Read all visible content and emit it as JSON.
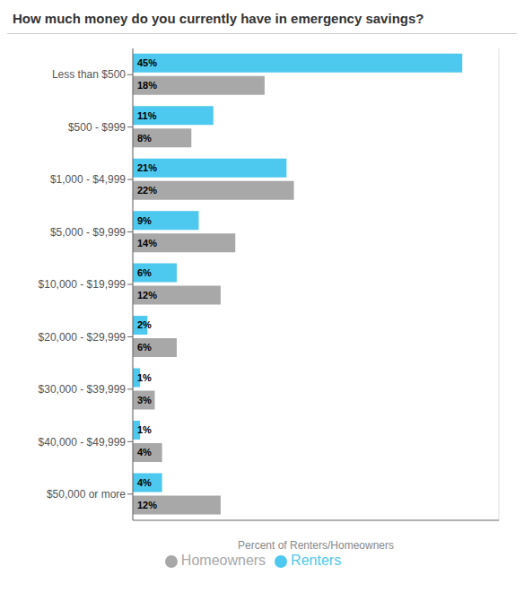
{
  "chart_data": {
    "type": "bar",
    "orientation": "horizontal",
    "title": "How much money do you currently have in emergency savings?",
    "x_label": "Percent of Renters/Homeowners",
    "categories": [
      "Less than $500",
      "$500 - $999",
      "$1,000 - $4,999",
      "$5,000 - $9,999",
      "$10,000 - $19,999",
      "$20,000 - $29,999",
      "$30,000 - $39,999",
      "$40,000 - $49,999",
      "$50,000 or more"
    ],
    "series": [
      {
        "name": "Renters",
        "color": "#4DC8EE",
        "values": [
          45,
          11,
          21,
          9,
          6,
          2,
          1,
          1,
          4
        ],
        "value_labels": [
          "45%",
          "11%",
          "21%",
          "9%",
          "6%",
          "2%",
          "1%",
          "1%",
          "4%"
        ]
      },
      {
        "name": "Homeowners",
        "color": "#A8A8A8",
        "values": [
          18,
          8,
          22,
          14,
          12,
          6,
          3,
          4,
          12
        ],
        "value_labels": [
          "18%",
          "8%",
          "22%",
          "14%",
          "12%",
          "6%",
          "3%",
          "4%",
          "12%"
        ]
      }
    ],
    "xlim": [
      0,
      50
    ],
    "xticks": [
      0,
      10,
      20,
      30,
      40,
      50
    ],
    "grid": true,
    "tick_labels": "y",
    "data_labels": true,
    "legend": "bottom"
  }
}
